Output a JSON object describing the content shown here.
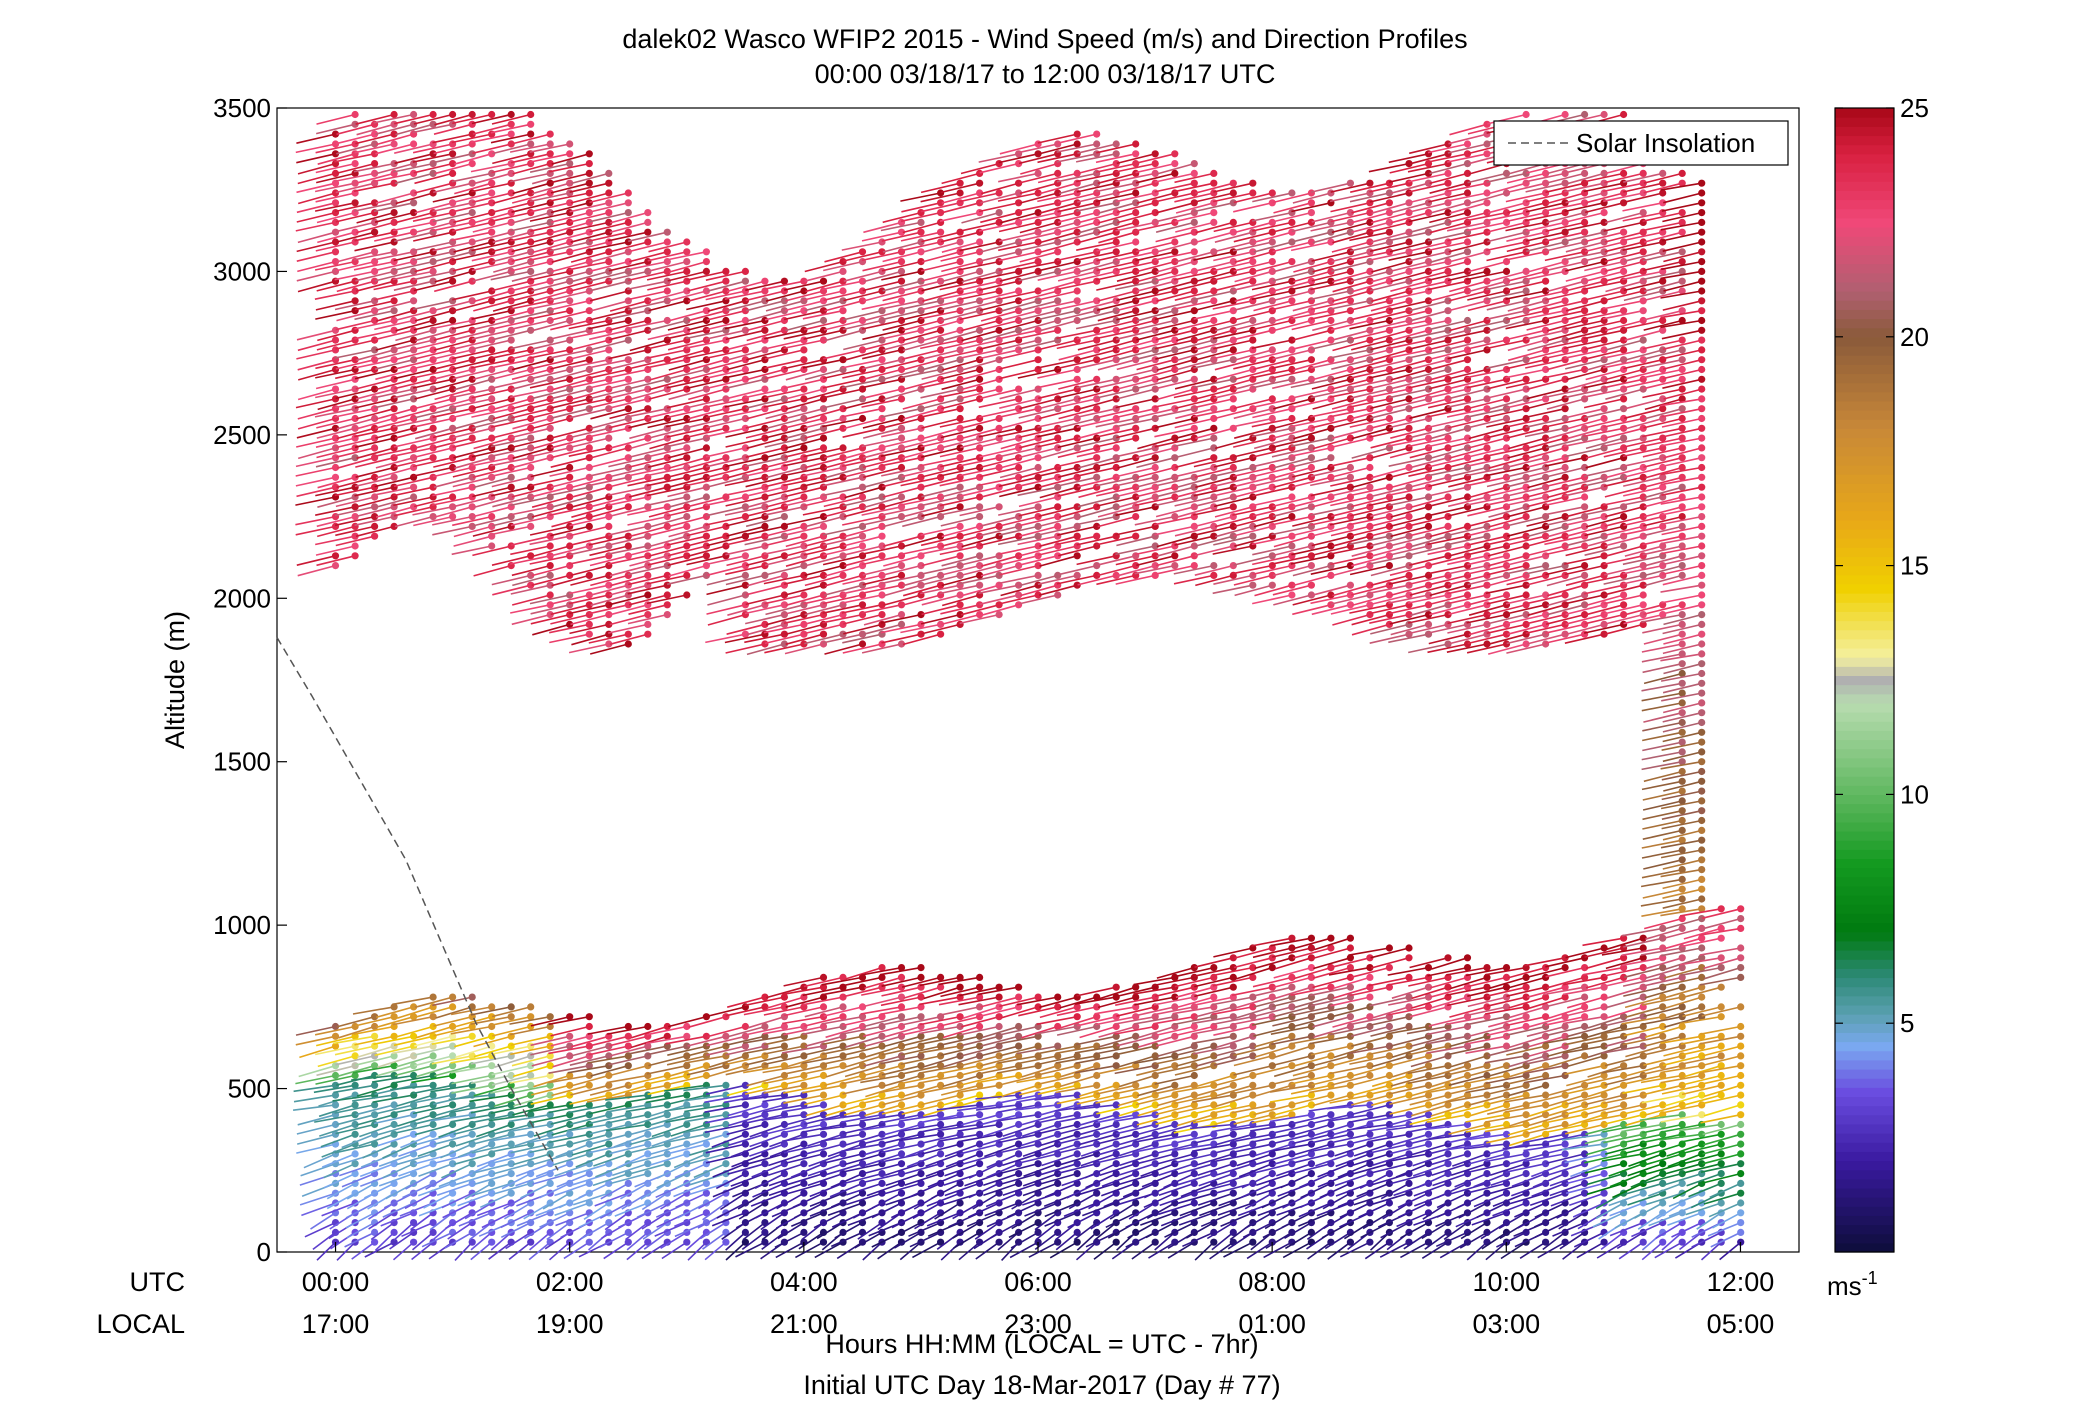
{
  "chart_data": {
    "type": "wind-barb-profile",
    "title": "dalek02 Wasco WFIP2 2015 - Wind Speed (m/s) and Direction Profiles",
    "subtitle": "00:00 03/18/17 to 12:00 03/18/17  UTC",
    "ylabel": "Altitude (m)",
    "ylim": [
      0,
      3500
    ],
    "yticks": [
      "0",
      "500",
      "1000",
      "1500",
      "2000",
      "2500",
      "3000",
      "3500"
    ],
    "xlim_hours": [
      -0.5,
      12.5
    ],
    "xtick_hours": [
      0,
      2,
      4,
      6,
      8,
      10,
      12
    ],
    "xticks_utc": [
      "00:00",
      "02:00",
      "04:00",
      "06:00",
      "08:00",
      "10:00",
      "12:00"
    ],
    "xticks_local": [
      "17:00",
      "19:00",
      "21:00",
      "23:00",
      "01:00",
      "03:00",
      "05:00"
    ],
    "row_label_utc": "UTC",
    "row_label_local": "LOCAL",
    "xlabel": "Hours HH:MM  (LOCAL = UTC - 7hr)",
    "xlabel2": "Initial UTC Day 18-Mar-2017 (Day # 77)",
    "legend": {
      "label": "Solar Insolation",
      "placement": "top-right",
      "line_color": "#555555"
    },
    "solar_insolation": [
      [
        -0.5,
        1880
      ],
      [
        -0.2,
        1700
      ],
      [
        0.2,
        1450
      ],
      [
        0.6,
        1200
      ],
      [
        0.9,
        950
      ],
      [
        1.2,
        700
      ],
      [
        1.5,
        500
      ],
      [
        1.9,
        250
      ]
    ],
    "colorbar": {
      "min": 0,
      "max": 25,
      "ticks": [
        "5",
        "10",
        "15",
        "20",
        "25"
      ],
      "unit_label": "ms",
      "unit_exponent": "-1",
      "colors": [
        {
          "v": 0,
          "c": "#0d0d3a"
        },
        {
          "v": 2,
          "c": "#3a1aa0"
        },
        {
          "v": 3.5,
          "c": "#6a4de0"
        },
        {
          "v": 4.5,
          "c": "#7aa8f0"
        },
        {
          "v": 5.2,
          "c": "#5aa0b0"
        },
        {
          "v": 6,
          "c": "#2e8a78"
        },
        {
          "v": 7,
          "c": "#007a10"
        },
        {
          "v": 8.5,
          "c": "#149a20"
        },
        {
          "v": 10,
          "c": "#60b860"
        },
        {
          "v": 12,
          "c": "#b8dcb0"
        },
        {
          "v": 12.5,
          "c": "#b0b0b0"
        },
        {
          "v": 13,
          "c": "#f4f0a0"
        },
        {
          "v": 14.5,
          "c": "#f0d000"
        },
        {
          "v": 16,
          "c": "#e8a818"
        },
        {
          "v": 18,
          "c": "#c88838"
        },
        {
          "v": 20,
          "c": "#8a5a3a"
        },
        {
          "v": 21,
          "c": "#b06070"
        },
        {
          "v": 22.5,
          "c": "#f04878"
        },
        {
          "v": 24,
          "c": "#d82040"
        },
        {
          "v": 25,
          "c": "#a80818"
        }
      ]
    },
    "profiles": {
      "time_start_hours": 0,
      "time_step_hours": 0.1667,
      "count": 73,
      "altitude_step_m": 30,
      "note_regimes": [
        {
          "layer": "low",
          "altitude_m": [
            30,
            500
          ],
          "speed_ms": [
            1,
            6
          ],
          "direction_deg": [
            190,
            260
          ]
        },
        {
          "layer": "mid",
          "altitude_m": [
            500,
            1050
          ],
          "speed_ms": [
            8,
            25
          ],
          "direction_deg": [
            230,
            250
          ]
        },
        {
          "layer": "upper",
          "altitude_m": [
            1850,
            3480
          ],
          "speed_ms": [
            20,
            25
          ],
          "direction_deg": [
            235,
            245
          ]
        }
      ]
    }
  }
}
